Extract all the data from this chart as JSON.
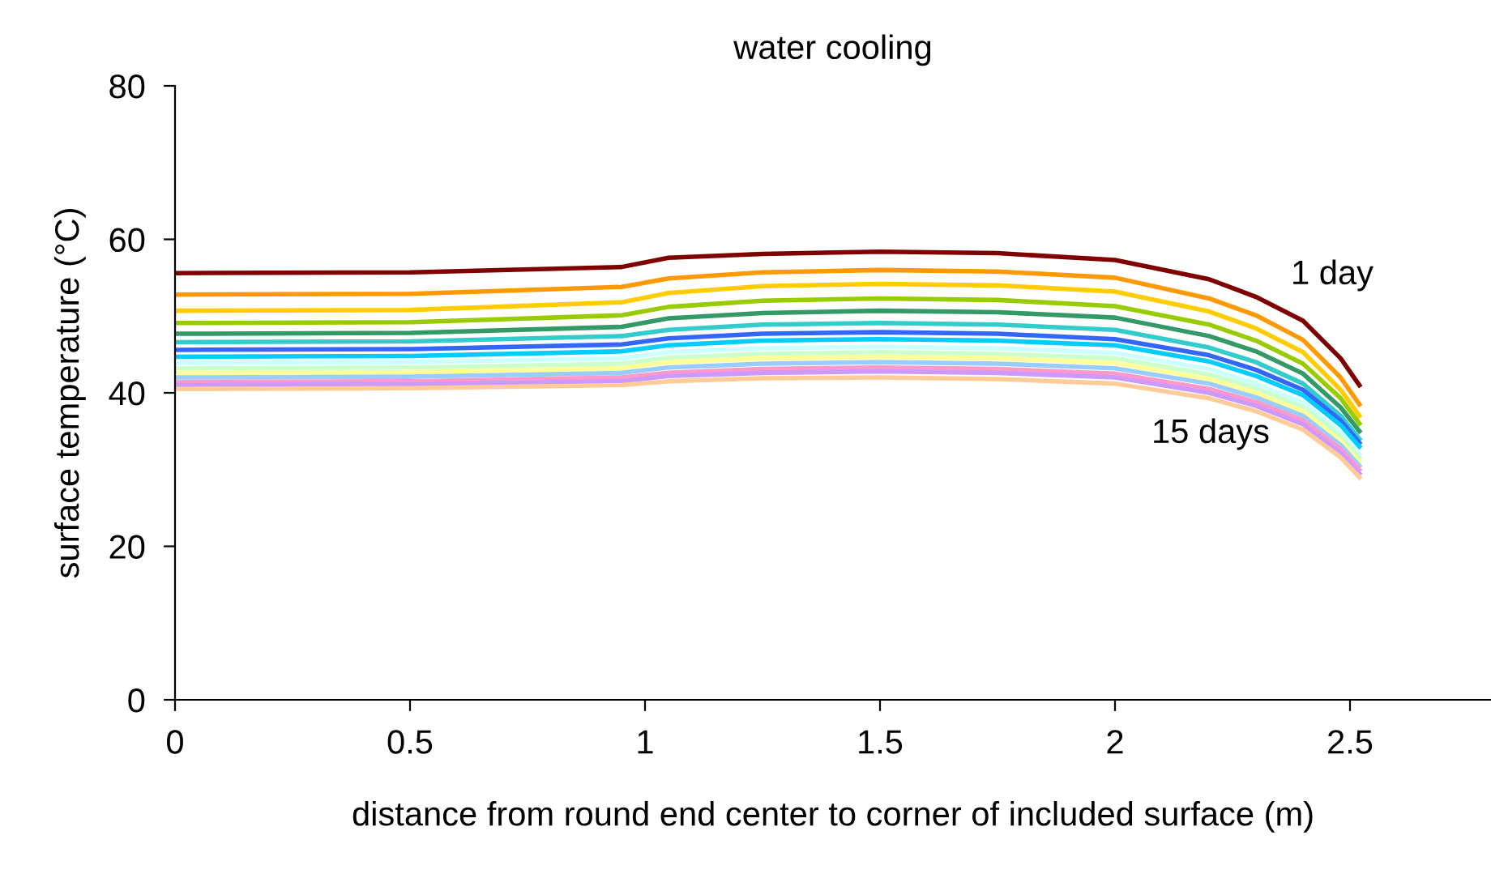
{
  "chart_data": {
    "type": "line",
    "title": "water cooling",
    "xlabel": "distance from round end center to corner of included surface (m)",
    "ylabel": "surface temperature (°C)",
    "x": [
      0,
      0.5,
      0.95,
      1.05,
      1.25,
      1.5,
      1.75,
      2,
      2.2,
      2.3,
      2.4,
      2.48,
      2.52
    ],
    "xlim": [
      0,
      2.8
    ],
    "xticks": [
      0,
      0.5,
      1,
      1.5,
      2,
      2.5
    ],
    "ylim": [
      0,
      80
    ],
    "yticks": [
      0,
      20,
      40,
      60,
      80
    ],
    "grid": false,
    "marker": "none",
    "line_style": "solid",
    "annotations": [
      "1 day",
      "15 days"
    ],
    "series": [
      {
        "color": "#800000",
        "values": [
          55.6,
          55.7,
          56.4,
          57.6,
          58.1,
          58.4,
          58.2,
          57.3,
          54.8,
          52.5,
          49.4,
          44.5,
          41
        ]
      },
      {
        "color": "#ff9900",
        "values": [
          52.8,
          52.9,
          53.8,
          54.9,
          55.7,
          56.0,
          55.8,
          55.0,
          52.3,
          50.1,
          46.9,
          42.0,
          38.5
        ]
      },
      {
        "color": "#ffcc00",
        "values": [
          50.7,
          50.8,
          51.8,
          53.0,
          53.9,
          54.2,
          54.0,
          53.2,
          50.6,
          48.4,
          45.3,
          40.4,
          37
        ]
      },
      {
        "color": "#99cc00",
        "values": [
          49.1,
          49.2,
          50.1,
          51.2,
          52.0,
          52.3,
          52.1,
          51.3,
          48.9,
          46.8,
          43.8,
          39.3,
          36
        ]
      },
      {
        "color": "#339966",
        "values": [
          47.7,
          47.8,
          48.6,
          49.7,
          50.4,
          50.7,
          50.5,
          49.8,
          47.4,
          45.4,
          42.5,
          38.1,
          35
        ]
      },
      {
        "color": "#33cccc",
        "values": [
          46.6,
          46.7,
          47.4,
          48.2,
          48.9,
          49.1,
          48.9,
          48.2,
          45.9,
          44.0,
          41.2,
          37.0,
          34
        ]
      },
      {
        "color": "#3366ff",
        "values": [
          45.6,
          45.7,
          46.3,
          47.1,
          47.7,
          47.9,
          47.7,
          47.0,
          44.9,
          43.0,
          40.4,
          36.4,
          33.5
        ]
      },
      {
        "color": "#00ccff",
        "values": [
          44.7,
          44.8,
          45.4,
          46.2,
          46.8,
          47.0,
          46.8,
          46.2,
          44.1,
          42.2,
          39.7,
          35.8,
          33
        ]
      },
      {
        "color": "#ccffff",
        "values": [
          43.9,
          44.0,
          44.5,
          45.3,
          45.8,
          46.0,
          45.8,
          45.2,
          43.1,
          41.2,
          38.7,
          34.8,
          32
        ]
      },
      {
        "color": "#ccffcc",
        "values": [
          43.2,
          43.3,
          43.8,
          44.6,
          45.1,
          45.3,
          45.1,
          44.5,
          42.4,
          40.6,
          38.1,
          34.3,
          31.5
        ]
      },
      {
        "color": "#ffff99",
        "values": [
          42.6,
          42.7,
          43.2,
          44.0,
          44.5,
          44.7,
          44.5,
          43.9,
          41.8,
          40.0,
          37.6,
          33.7,
          31
        ]
      },
      {
        "color": "#99ccff",
        "values": [
          42.0,
          42.1,
          42.6,
          43.3,
          43.8,
          44.0,
          43.8,
          43.2,
          41.2,
          39.4,
          37.0,
          33.2,
          30.5
        ]
      },
      {
        "color": "#ff99cc",
        "values": [
          41.4,
          41.5,
          42.0,
          42.6,
          43.1,
          43.3,
          43.1,
          42.5,
          40.5,
          38.8,
          36.4,
          32.7,
          30
        ]
      },
      {
        "color": "#cc99ff",
        "values": [
          41.0,
          41.1,
          41.5,
          42.2,
          42.6,
          42.8,
          42.6,
          42.0,
          40.0,
          38.3,
          35.9,
          32.2,
          29.5
        ]
      },
      {
        "color": "#ffcc99",
        "values": [
          40.5,
          40.6,
          41.0,
          41.5,
          41.9,
          42.0,
          41.8,
          41.2,
          39.3,
          37.6,
          35.2,
          31.6,
          29
        ]
      }
    ]
  }
}
